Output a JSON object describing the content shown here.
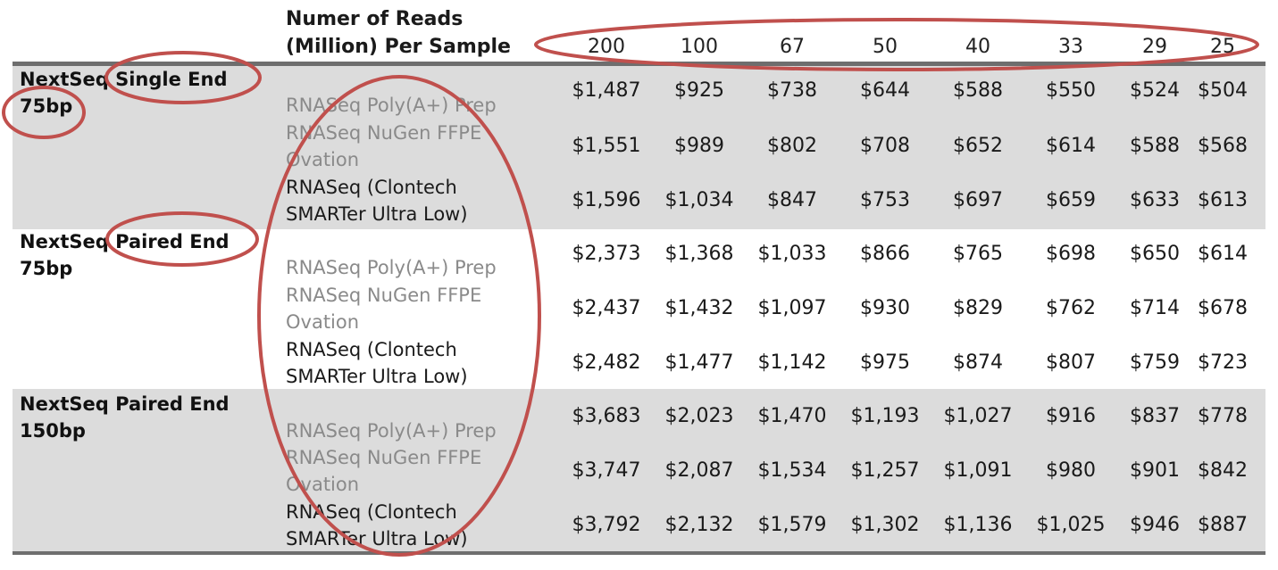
{
  "header": {
    "title_line1": "Numer of Reads",
    "title_line2": "(Million) Per Sample",
    "columns": [
      "200",
      "100",
      "67",
      "50",
      "40",
      "33",
      "29",
      "25"
    ]
  },
  "groups": [
    {
      "label_line1": "NextSeq Single End",
      "label_line2": "75bp",
      "rows": [
        {
          "prep_line1": "RNASeq Poly(A+) Prep",
          "prep_line2": "",
          "values": [
            "$1,487",
            "$925",
            "$738",
            "$644",
            "$588",
            "$550",
            "$524",
            "$504"
          ]
        },
        {
          "prep_line1": "RNASeq NuGen FFPE",
          "prep_line2": "Ovation",
          "values": [
            "$1,551",
            "$989",
            "$802",
            "$708",
            "$652",
            "$614",
            "$588",
            "$568"
          ]
        },
        {
          "prep_line1": "RNASeq (Clontech",
          "prep_line2": "SMARTer Ultra Low)",
          "values": [
            "$1,596",
            "$1,034",
            "$847",
            "$753",
            "$697",
            "$659",
            "$633",
            "$613"
          ]
        }
      ]
    },
    {
      "label_line1": "NextSeq Paired End",
      "label_line2": "75bp",
      "rows": [
        {
          "prep_line1": "RNASeq Poly(A+) Prep",
          "prep_line2": "",
          "values": [
            "$2,373",
            "$1,368",
            "$1,033",
            "$866",
            "$765",
            "$698",
            "$650",
            "$614"
          ]
        },
        {
          "prep_line1": "RNASeq NuGen FFPE",
          "prep_line2": "Ovation",
          "values": [
            "$2,437",
            "$1,432",
            "$1,097",
            "$930",
            "$829",
            "$762",
            "$714",
            "$678"
          ]
        },
        {
          "prep_line1": "RNASeq (Clontech",
          "prep_line2": "SMARTer Ultra Low)",
          "values": [
            "$2,482",
            "$1,477",
            "$1,142",
            "$975",
            "$874",
            "$807",
            "$759",
            "$723"
          ]
        }
      ]
    },
    {
      "label_line1": "NextSeq Paired End",
      "label_line2": "150bp",
      "rows": [
        {
          "prep_line1": "RNASeq Poly(A+) Prep",
          "prep_line2": "",
          "values": [
            "$3,683",
            "$2,023",
            "$1,470",
            "$1,193",
            "$1,027",
            "$916",
            "$837",
            "$778"
          ]
        },
        {
          "prep_line1": "RNASeq NuGen FFPE",
          "prep_line2": "Ovation",
          "values": [
            "$3,747",
            "$2,087",
            "$1,534",
            "$1,257",
            "$1,091",
            "$980",
            "$901",
            "$842"
          ]
        },
        {
          "prep_line1": "RNASeq (Clontech",
          "prep_line2": "SMARTer Ultra Low)",
          "values": [
            "$3,792",
            "$2,132",
            "$1,579",
            "$1,302",
            "$1,136",
            "$1,025",
            "$946",
            "$887"
          ]
        }
      ]
    }
  ],
  "colors": {
    "band": "#dcdcdc",
    "rule": "#6e6e6e",
    "annotation": "#c0504d"
  }
}
